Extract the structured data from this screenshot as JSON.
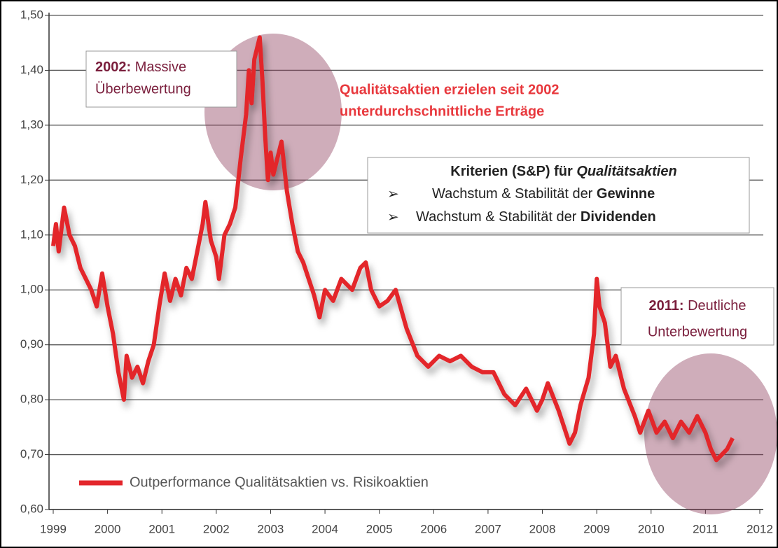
{
  "chart_data": {
    "type": "line",
    "x": [
      1999.0,
      1999.05,
      1999.1,
      1999.2,
      1999.3,
      1999.4,
      1999.5,
      1999.6,
      1999.7,
      1999.8,
      1999.9,
      2000.0,
      2000.1,
      2000.2,
      2000.3,
      2000.35,
      2000.45,
      2000.55,
      2000.65,
      2000.75,
      2000.85,
      2000.95,
      2001.05,
      2001.15,
      2001.25,
      2001.35,
      2001.45,
      2001.55,
      2001.65,
      2001.75,
      2001.8,
      2001.9,
      2002.0,
      2002.05,
      2002.15,
      2002.25,
      2002.35,
      2002.45,
      2002.55,
      2002.6,
      2002.65,
      2002.7,
      2002.8,
      2002.85,
      2002.9,
      2002.95,
      2003.0,
      2003.05,
      2003.15,
      2003.2,
      2003.3,
      2003.4,
      2003.5,
      2003.6,
      2003.7,
      2003.8,
      2003.9,
      2004.0,
      2004.15,
      2004.3,
      2004.5,
      2004.65,
      2004.75,
      2004.85,
      2005.0,
      2005.15,
      2005.3,
      2005.5,
      2005.7,
      2005.9,
      2006.1,
      2006.3,
      2006.5,
      2006.7,
      2006.9,
      2007.1,
      2007.3,
      2007.5,
      2007.7,
      2007.9,
      2008.0,
      2008.1,
      2008.3,
      2008.5,
      2008.6,
      2008.7,
      2008.85,
      2008.95,
      2009.0,
      2009.05,
      2009.15,
      2009.25,
      2009.35,
      2009.5,
      2009.7,
      2009.8,
      2009.95,
      2010.1,
      2010.25,
      2010.4,
      2010.55,
      2010.7,
      2010.85,
      2011.0,
      2011.1,
      2011.2,
      2011.3,
      2011.4,
      2011.5
    ],
    "series": [
      {
        "name": "Outperformance Qualitätsaktien vs. Risikoaktien",
        "color": "#e3262b",
        "values": [
          1.08,
          1.12,
          1.07,
          1.15,
          1.1,
          1.08,
          1.04,
          1.02,
          1.0,
          0.97,
          1.03,
          0.97,
          0.92,
          0.85,
          0.8,
          0.88,
          0.84,
          0.86,
          0.83,
          0.87,
          0.9,
          0.97,
          1.03,
          0.98,
          1.02,
          0.99,
          1.04,
          1.02,
          1.07,
          1.12,
          1.16,
          1.09,
          1.06,
          1.02,
          1.1,
          1.12,
          1.15,
          1.24,
          1.32,
          1.4,
          1.34,
          1.42,
          1.46,
          1.38,
          1.28,
          1.2,
          1.25,
          1.21,
          1.25,
          1.27,
          1.18,
          1.12,
          1.07,
          1.05,
          1.02,
          0.99,
          0.95,
          1.0,
          0.98,
          1.02,
          1.0,
          1.04,
          1.05,
          1.0,
          0.97,
          0.98,
          1.0,
          0.93,
          0.88,
          0.86,
          0.88,
          0.87,
          0.88,
          0.86,
          0.85,
          0.85,
          0.81,
          0.79,
          0.82,
          0.78,
          0.8,
          0.83,
          0.78,
          0.72,
          0.74,
          0.79,
          0.84,
          0.92,
          1.02,
          0.97,
          0.94,
          0.86,
          0.88,
          0.82,
          0.77,
          0.74,
          0.78,
          0.74,
          0.76,
          0.73,
          0.76,
          0.74,
          0.77,
          0.74,
          0.71,
          0.69,
          0.7,
          0.71,
          0.73
        ]
      }
    ],
    "xlim": [
      1999,
      2012
    ],
    "xticks": [
      1999,
      2000,
      2001,
      2002,
      2003,
      2004,
      2005,
      2006,
      2007,
      2008,
      2009,
      2010,
      2011,
      2012
    ],
    "ylim": [
      0.6,
      1.5
    ],
    "yticks": [
      {
        "value": 0.6,
        "label": "0,60"
      },
      {
        "value": 0.7,
        "label": "0,70"
      },
      {
        "value": 0.8,
        "label": "0,80"
      },
      {
        "value": 0.9,
        "label": "0,90"
      },
      {
        "value": 1.0,
        "label": "1,00"
      },
      {
        "value": 1.1,
        "label": "1,10"
      },
      {
        "value": 1.2,
        "label": "1,20"
      },
      {
        "value": 1.3,
        "label": "1,30"
      },
      {
        "value": 1.4,
        "label": "1,40"
      },
      {
        "value": 1.5,
        "label": "1,50"
      }
    ],
    "grid": true,
    "annotations": [
      {
        "bold": "2002:",
        "text": "Massive",
        "line2": "Überbewertung"
      },
      {
        "bold": "2011:",
        "text": "Deutliche",
        "line2": "Unterbewertung"
      },
      {
        "line1": "Qualitätsaktien erzielen seit 2002",
        "line2": "unterdurchschnittliche Erträge"
      }
    ],
    "criteria": {
      "title": "Kriterien (S&P) für",
      "title_em": "Qualitätsaktien",
      "items": [
        {
          "text": "Wachstum & Stabilität der",
          "bold": "Gewinne"
        },
        {
          "text": "Wachstum & Stabilität der",
          "bold": "Dividenden"
        }
      ]
    }
  }
}
